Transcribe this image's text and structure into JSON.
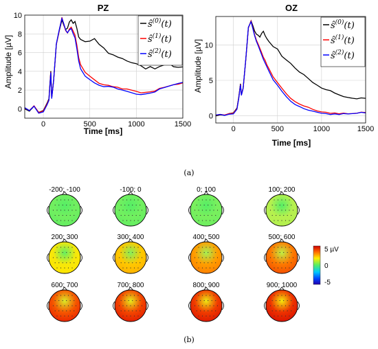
{
  "figure": {
    "panel_a_caption": "(a)",
    "panel_b_caption": "(b)"
  },
  "chart_data": [
    {
      "type": "line",
      "title": "PZ",
      "xlabel": "Time [ms]",
      "ylabel": "Amplitude [µV]",
      "xlim": [
        -200,
        1500
      ],
      "ylim": [
        -1,
        10
      ],
      "xticks": [
        0,
        500,
        1000,
        1500
      ],
      "yticks": [
        0,
        2,
        4,
        6,
        8,
        10
      ],
      "grid": true,
      "legend_position": "top-right",
      "series": [
        {
          "name": "s^(0)(t)",
          "color": "#000000",
          "x": [
            -200,
            -150,
            -100,
            -50,
            0,
            40,
            60,
            80,
            90,
            110,
            140,
            170,
            200,
            220,
            240,
            260,
            280,
            300,
            320,
            340,
            360,
            380,
            400,
            450,
            500,
            550,
            600,
            650,
            700,
            750,
            800,
            850,
            900,
            950,
            1000,
            1050,
            1100,
            1150,
            1200,
            1250,
            1300,
            1350,
            1400,
            1450,
            1500
          ],
          "y": [
            0,
            -0.3,
            0.2,
            -0.5,
            -0.3,
            0.5,
            1.0,
            4.0,
            1.2,
            3.0,
            7.0,
            8.4,
            9.6,
            9.0,
            8.5,
            8.6,
            9.2,
            9.4,
            9.0,
            9.2,
            8.5,
            7.6,
            7.4,
            7.2,
            7.3,
            7.6,
            7.0,
            6.6,
            6.0,
            5.8,
            5.5,
            5.3,
            5.0,
            4.8,
            4.7,
            4.5,
            4.2,
            4.5,
            4.3,
            4.6,
            4.8,
            5.0,
            4.6,
            4.5,
            4.5
          ]
        },
        {
          "name": "s^(1)(t)",
          "color": "#ff0000",
          "x": [
            -200,
            -150,
            -100,
            -50,
            0,
            40,
            60,
            80,
            90,
            110,
            140,
            170,
            200,
            220,
            240,
            260,
            280,
            300,
            320,
            340,
            360,
            380,
            400,
            450,
            500,
            550,
            600,
            650,
            700,
            750,
            800,
            850,
            900,
            950,
            1000,
            1050,
            1100,
            1150,
            1200,
            1250,
            1300,
            1350,
            1400,
            1450,
            1500
          ],
          "y": [
            0,
            -0.3,
            0.2,
            -0.5,
            -0.3,
            0.5,
            1.0,
            4.0,
            1.2,
            3.0,
            7.0,
            8.4,
            9.8,
            9.0,
            8.3,
            8.0,
            8.4,
            8.6,
            8.2,
            7.8,
            6.8,
            5.5,
            4.8,
            4.0,
            3.6,
            3.2,
            2.8,
            2.6,
            2.5,
            2.3,
            2.2,
            2.0,
            2.0,
            1.9,
            1.8,
            1.7,
            1.8,
            1.9,
            2.0,
            2.3,
            2.4,
            2.5,
            2.6,
            2.6,
            2.7
          ]
        },
        {
          "name": "s^(2)(t)",
          "color": "#0000ff",
          "x": [
            -200,
            -150,
            -100,
            -50,
            0,
            40,
            60,
            80,
            90,
            110,
            140,
            170,
            200,
            220,
            240,
            260,
            280,
            300,
            320,
            340,
            360,
            380,
            400,
            450,
            500,
            550,
            600,
            650,
            700,
            750,
            800,
            850,
            900,
            950,
            1000,
            1050,
            1100,
            1150,
            1200,
            1250,
            1300,
            1350,
            1400,
            1450,
            1500
          ],
          "y": [
            0,
            -0.3,
            0.2,
            -0.5,
            -0.3,
            0.5,
            1.0,
            4.0,
            1.2,
            3.0,
            7.0,
            8.4,
            9.6,
            9.0,
            8.3,
            8.0,
            8.3,
            8.5,
            8.0,
            7.6,
            6.5,
            5.2,
            4.4,
            3.6,
            3.2,
            2.8,
            2.5,
            2.3,
            2.3,
            2.2,
            2.0,
            1.9,
            1.8,
            1.7,
            1.6,
            1.6,
            1.7,
            1.8,
            1.9,
            2.2,
            2.3,
            2.4,
            2.5,
            2.6,
            2.7
          ]
        }
      ]
    },
    {
      "type": "line",
      "title": "OZ",
      "xlabel": "Time [ms]",
      "ylabel": "Amplitude [µV]",
      "xlim": [
        -200,
        1500
      ],
      "ylim": [
        -1,
        14
      ],
      "xticks": [
        0,
        500,
        1000,
        1500
      ],
      "yticks": [
        0,
        5,
        10
      ],
      "grid": true,
      "legend_position": "top-right",
      "series": [
        {
          "name": "s^(0)(t)",
          "color": "#000000",
          "x": [
            -200,
            -150,
            -100,
            -50,
            0,
            40,
            60,
            80,
            90,
            110,
            140,
            170,
            200,
            220,
            240,
            260,
            280,
            300,
            320,
            340,
            360,
            380,
            400,
            450,
            500,
            550,
            600,
            650,
            700,
            750,
            800,
            850,
            900,
            950,
            1000,
            1050,
            1100,
            1150,
            1200,
            1250,
            1300,
            1350,
            1400,
            1450,
            1500
          ],
          "y": [
            0,
            0.1,
            0,
            0.2,
            0.3,
            1.0,
            2.5,
            4.5,
            3.0,
            4.0,
            8.0,
            12.5,
            13.5,
            12.8,
            12.0,
            11.5,
            11.3,
            11.0,
            11.5,
            11.8,
            11.2,
            10.8,
            10.5,
            9.8,
            9.5,
            8.5,
            8.0,
            7.5,
            6.8,
            6.2,
            5.8,
            5.2,
            4.6,
            4.2,
            3.8,
            3.6,
            3.5,
            3.2,
            3.0,
            2.8,
            2.7,
            2.6,
            2.5,
            2.6,
            2.5
          ]
        },
        {
          "name": "s^(1)(t)",
          "color": "#ff0000",
          "x": [
            -200,
            -150,
            -100,
            -50,
            0,
            40,
            60,
            80,
            90,
            110,
            140,
            170,
            200,
            220,
            240,
            260,
            280,
            300,
            320,
            340,
            360,
            380,
            400,
            450,
            500,
            550,
            600,
            650,
            700,
            750,
            800,
            850,
            900,
            950,
            1000,
            1050,
            1100,
            1150,
            1200,
            1250,
            1300,
            1350,
            1400,
            1450,
            1500
          ],
          "y": [
            0,
            0.1,
            0,
            0.2,
            0.3,
            1.0,
            2.5,
            4.5,
            3.0,
            4.0,
            8.0,
            12.5,
            13.4,
            12.4,
            11.4,
            10.6,
            10.0,
            9.4,
            8.8,
            8.2,
            7.8,
            7.2,
            6.8,
            5.6,
            4.8,
            4.0,
            3.2,
            2.5,
            2.0,
            1.6,
            1.3,
            1.1,
            0.8,
            0.6,
            0.5,
            0.5,
            0.4,
            0.5,
            0.4,
            0.5,
            0.4,
            0.4,
            0.4,
            0.5,
            0.4
          ]
        },
        {
          "name": "s^(2)(t)",
          "color": "#0000ff",
          "x": [
            -200,
            -150,
            -100,
            -50,
            0,
            40,
            60,
            80,
            90,
            110,
            140,
            170,
            200,
            220,
            240,
            260,
            280,
            300,
            320,
            340,
            360,
            380,
            400,
            450,
            500,
            550,
            600,
            650,
            700,
            750,
            800,
            850,
            900,
            950,
            1000,
            1050,
            1100,
            1150,
            1200,
            1250,
            1300,
            1350,
            1400,
            1450,
            1500
          ],
          "y": [
            0,
            0.1,
            0,
            0.2,
            0.3,
            1.0,
            2.5,
            4.5,
            3.0,
            4.0,
            8.0,
            12.5,
            13.2,
            12.2,
            11.2,
            10.4,
            9.8,
            9.2,
            8.6,
            8.0,
            7.5,
            7.0,
            6.5,
            5.2,
            4.4,
            3.5,
            2.7,
            2.0,
            1.5,
            1.2,
            0.9,
            0.7,
            0.6,
            0.5,
            0.4,
            0.4,
            0.3,
            0.4,
            0.3,
            0.4,
            0.3,
            0.3,
            0.3,
            0.4,
            0.3
          ]
        }
      ]
    },
    {
      "type": "heatmap",
      "description_kind": "scalp topographic maps",
      "colorbar": {
        "max_label": "5 µV",
        "mid_label": "0",
        "min_label": "-5",
        "range": [
          -5,
          5
        ]
      },
      "maps": [
        {
          "label": "-200; -100",
          "level": 0.05
        },
        {
          "label": "-100; 0",
          "level": 0.05
        },
        {
          "label": "0; 100",
          "level": 0.08
        },
        {
          "label": "100; 200",
          "level": 0.3
        },
        {
          "label": "200; 300",
          "level": 0.5
        },
        {
          "label": "300; 400",
          "level": 0.6
        },
        {
          "label": "400; 500",
          "level": 0.7
        },
        {
          "label": "500; 600",
          "level": 0.78
        },
        {
          "label": "600; 700",
          "level": 0.85
        },
        {
          "label": "700; 800",
          "level": 0.88
        },
        {
          "label": "800; 900",
          "level": 0.9
        },
        {
          "label": "900; 1000",
          "level": 0.92
        }
      ]
    }
  ]
}
